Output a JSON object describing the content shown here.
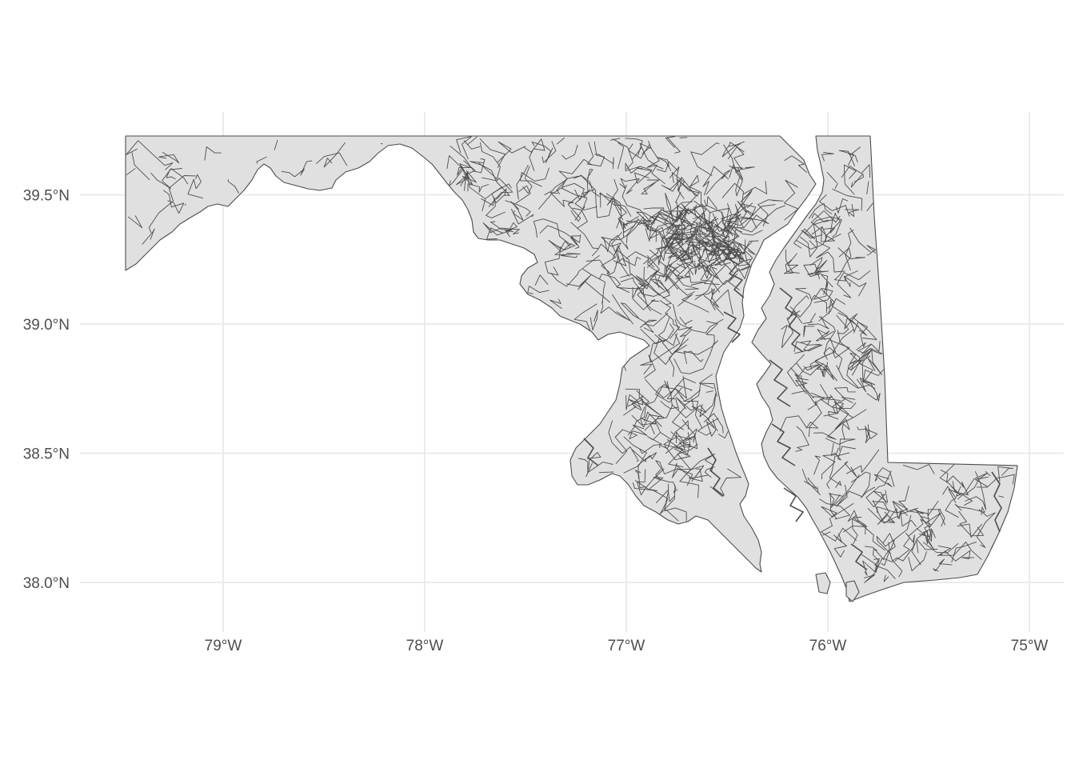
{
  "map": {
    "region": "Maryland census tracts",
    "fill_color": "#e0e0e0",
    "border_color": "#4d4d4d",
    "grid_color": "#ebebeb",
    "x_axis": {
      "ticks": [
        -79,
        -78,
        -77,
        -76,
        -75
      ],
      "labels": [
        "79°W",
        "78°W",
        "77°W",
        "76°W",
        "75°W"
      ],
      "range": [
        -79.49,
        -75.05
      ]
    },
    "y_axis": {
      "ticks": [
        38.0,
        38.5,
        39.0,
        39.5
      ],
      "labels": [
        "38.0°N",
        "38.5°N",
        "39.0°N",
        "39.5°N"
      ],
      "range": [
        37.91,
        39.72
      ]
    },
    "grid": true
  }
}
